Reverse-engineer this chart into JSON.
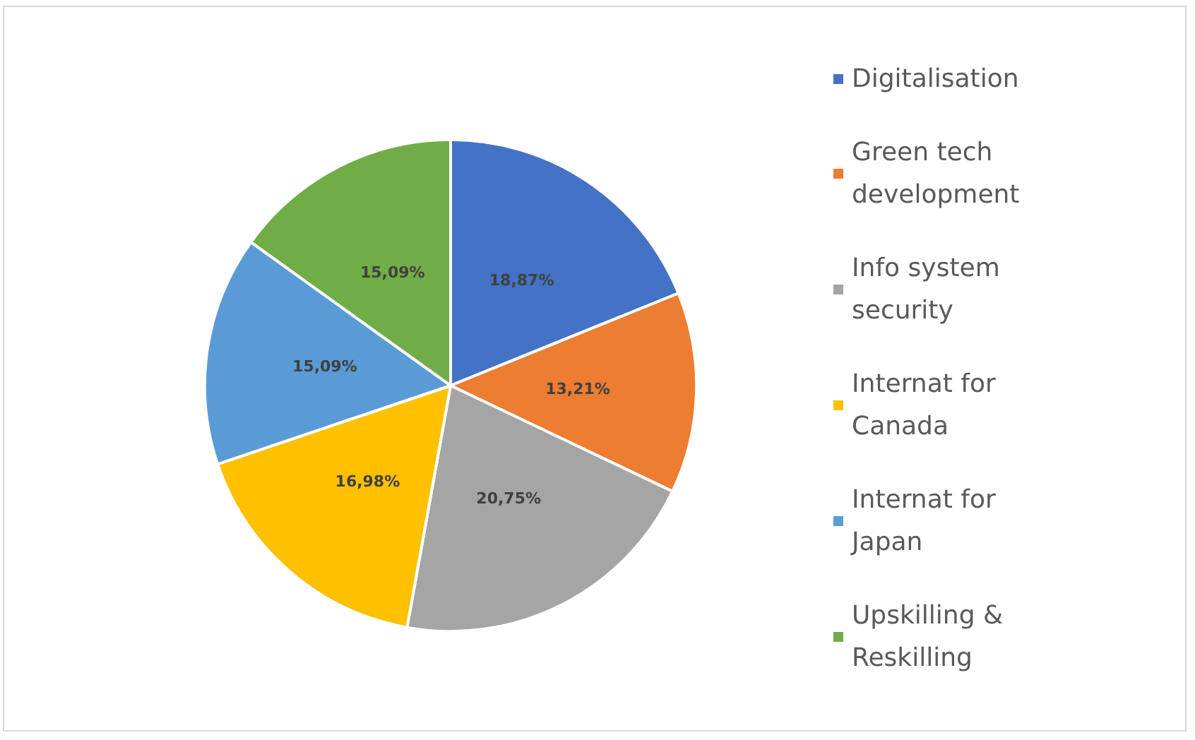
{
  "chart_data": {
    "type": "pie",
    "categories": [
      "Digitalisation",
      "Green tech development",
      "Info system security",
      "Internat for Canada",
      "Internat for Japan",
      "Upskilling & Reskilling"
    ],
    "values": [
      18.87,
      13.21,
      20.75,
      16.98,
      15.09,
      15.09
    ],
    "value_labels": [
      "18,87%",
      "13,21%",
      "20,75%",
      "16,98%",
      "15,09%",
      "15,09%"
    ],
    "colors": [
      "#4472c4",
      "#ed7d31",
      "#a5a5a5",
      "#ffc000",
      "#5b9bd5",
      "#70ad47"
    ],
    "legend": "right"
  }
}
